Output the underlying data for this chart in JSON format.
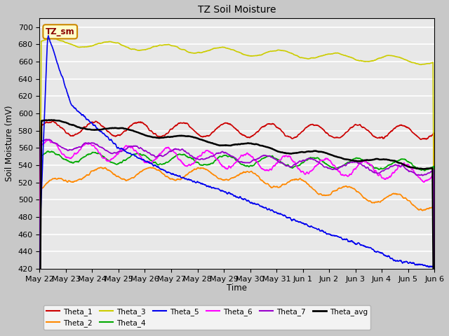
{
  "title": "TZ Soil Moisture",
  "ylabel": "Soil Moisture (mV)",
  "xlabel": "Time",
  "ylim": [
    420,
    710
  ],
  "bg_color": "#e8e8e8",
  "legend_label": "TZ_sm",
  "legend_bg": "#ffffcc",
  "legend_border": "#cc8800",
  "series": {
    "Theta_1": {
      "color": "#cc0000",
      "lw": 1.2
    },
    "Theta_2": {
      "color": "#ff8800",
      "lw": 1.2
    },
    "Theta_3": {
      "color": "#cccc00",
      "lw": 1.2
    },
    "Theta_4": {
      "color": "#00aa00",
      "lw": 1.2
    },
    "Theta_5": {
      "color": "#0000ee",
      "lw": 1.2
    },
    "Theta_6": {
      "color": "#ff00ff",
      "lw": 1.2
    },
    "Theta_7": {
      "color": "#9900cc",
      "lw": 1.2
    },
    "Theta_avg": {
      "color": "#000000",
      "lw": 1.8
    }
  },
  "xtick_labels": [
    "May 22",
    "May 23",
    "May 24",
    "May 25",
    "May 26",
    "May 27",
    "May 28",
    "May 29",
    "May 30",
    "May 31",
    "Jun 1",
    "Jun 2",
    "Jun 3",
    "Jun 4",
    "Jun 5",
    "Jun 6"
  ]
}
